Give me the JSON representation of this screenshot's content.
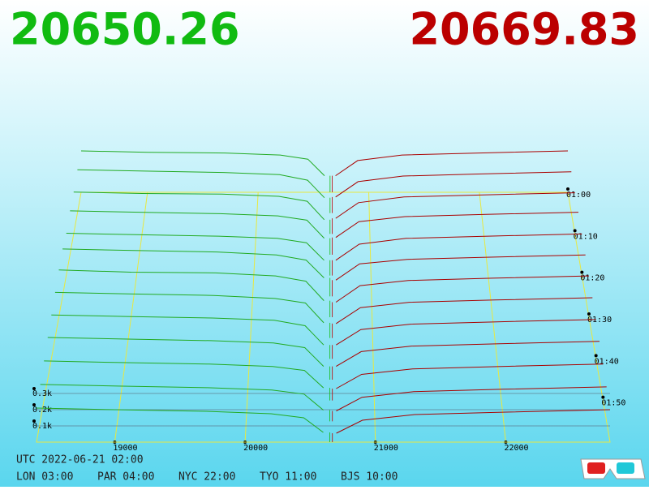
{
  "chart_data": {
    "type": "depth3d",
    "bid_price": 20650.26,
    "ask_price": 20669.83,
    "bid_color": "#11bb11",
    "ask_color": "#bb0000",
    "xlim": [
      18400,
      22800
    ],
    "xticks": [
      19000,
      20000,
      21000,
      22000
    ],
    "yticks": [
      {
        "value": 100,
        "label": "0.1k"
      },
      {
        "value": 200,
        "label": "0.2k"
      },
      {
        "value": 300,
        "label": "0.3k"
      }
    ],
    "times": [
      "01:00",
      null,
      "01:10",
      null,
      "01:20",
      null,
      "01:30",
      null,
      "01:40",
      null,
      "01:50",
      null,
      null
    ],
    "bids": {
      "color": "#22aa22",
      "x": [
        18400,
        19000,
        19700,
        20200,
        20450,
        20600
      ],
      "rows": [
        [
          300,
          290,
          285,
          270,
          240,
          120
        ],
        [
          310,
          300,
          290,
          275,
          235,
          110
        ],
        [
          295,
          285,
          280,
          265,
          230,
          100
        ],
        [
          305,
          295,
          285,
          270,
          240,
          115
        ],
        [
          290,
          280,
          270,
          255,
          225,
          105
        ],
        [
          320,
          310,
          300,
          280,
          245,
          125
        ],
        [
          315,
          300,
          295,
          275,
          240,
          110
        ],
        [
          300,
          290,
          280,
          260,
          230,
          100
        ],
        [
          285,
          275,
          265,
          250,
          215,
          90
        ],
        [
          270,
          260,
          250,
          235,
          205,
          85
        ],
        [
          250,
          240,
          230,
          215,
          190,
          80
        ],
        [
          230,
          220,
          210,
          195,
          170,
          70
        ],
        [
          210,
          200,
          190,
          175,
          150,
          60
        ]
      ]
    },
    "asks": {
      "color": "#aa0000",
      "x": [
        20700,
        20900,
        21300,
        22000,
        22800
      ],
      "rows": [
        [
          120,
          230,
          270,
          285,
          300
        ],
        [
          115,
          225,
          265,
          280,
          295
        ],
        [
          110,
          220,
          260,
          275,
          290
        ],
        [
          120,
          230,
          265,
          280,
          295
        ],
        [
          105,
          215,
          255,
          270,
          285
        ],
        [
          110,
          220,
          250,
          265,
          280
        ],
        [
          100,
          210,
          245,
          260,
          275
        ],
        [
          95,
          200,
          235,
          250,
          265
        ],
        [
          90,
          190,
          225,
          240,
          255
        ],
        [
          85,
          180,
          215,
          230,
          245
        ],
        [
          75,
          165,
          200,
          215,
          230
        ],
        [
          65,
          150,
          185,
          200,
          215
        ],
        [
          55,
          135,
          170,
          185,
          200
        ]
      ]
    }
  },
  "footer": {
    "utc": "UTC 2022-06-21 02:00",
    "cities": [
      "LON 03:00",
      "PAR 04:00",
      "NYC 22:00",
      "TYO 11:00",
      "BJS 10:00"
    ]
  }
}
